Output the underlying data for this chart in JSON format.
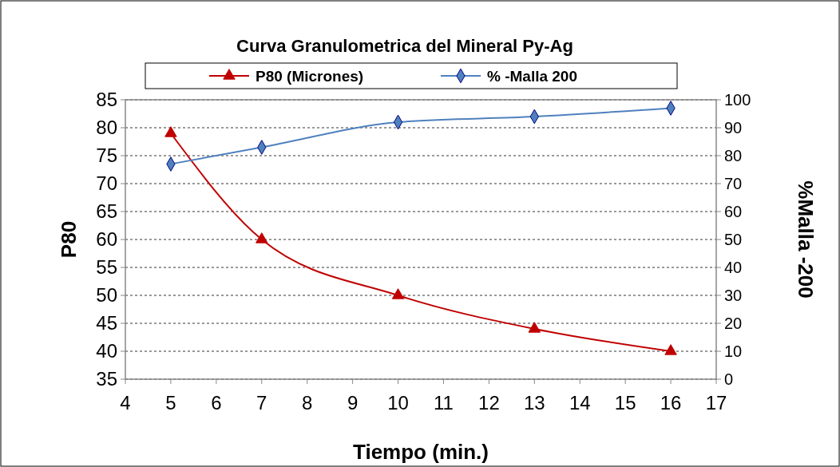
{
  "chart_data": {
    "type": "line",
    "title": "Curva Granulometrica del Mineral Py-Ag",
    "xlabel": "Tiempo (min.)",
    "ylabel": "P80",
    "y2label": "%Malla -200",
    "x": [
      5,
      7,
      10,
      13,
      16
    ],
    "series": [
      {
        "name": "P80 (Micrones)",
        "color": "#c00000",
        "marker": "triangle",
        "values": [
          79,
          60,
          50,
          44,
          40
        ]
      },
      {
        "name": "% -Malla 200",
        "color": "#4f81bd",
        "marker": "diamond",
        "axis": "y2",
        "values": [
          77,
          83,
          92,
          94,
          97
        ]
      }
    ],
    "xlim": [
      4,
      17
    ],
    "xticks": [
      4,
      5,
      6,
      7,
      8,
      9,
      10,
      11,
      12,
      13,
      14,
      15,
      16,
      17
    ],
    "ylim": [
      35,
      85
    ],
    "yticks": [
      35,
      40,
      45,
      50,
      55,
      60,
      65,
      70,
      75,
      80,
      85
    ],
    "y2lim": [
      0,
      100
    ],
    "y2ticks": [
      0,
      10,
      20,
      30,
      40,
      50,
      60,
      70,
      80,
      90,
      100
    ],
    "grid": "y",
    "legend": "top",
    "line_style": "solid"
  }
}
